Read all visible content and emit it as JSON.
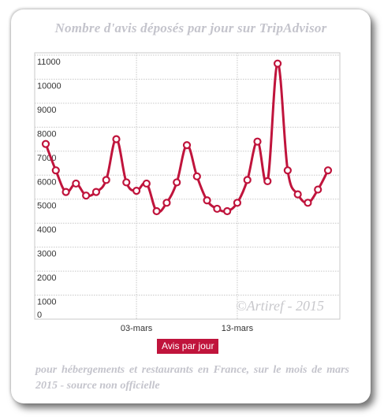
{
  "title": "Nombre d'avis déposés par jour sur TripAdvisor",
  "watermark": "©Artiref - 2015",
  "footnote": "pour hébergements et restaurants en France, sur le mois de mars 2015 - source non officielle",
  "chart_data": {
    "type": "line",
    "title": "Nombre d'avis déposés par jour sur TripAdvisor",
    "xlabel": "",
    "ylabel": "",
    "x_tick_labels": [
      {
        "label": "03-mars",
        "index": 9
      },
      {
        "label": "13-mars",
        "index": 19
      }
    ],
    "y_ticks": [
      0,
      1000,
      2000,
      3000,
      4000,
      5000,
      6000,
      7000,
      8000,
      9000,
      10000,
      11000
    ],
    "ylim": [
      0,
      11100
    ],
    "grid": true,
    "legend_position": "bottom-center",
    "series": [
      {
        "name": "Avis par jour",
        "color": "#c0143c",
        "values": [
          7300,
          6200,
          5300,
          5650,
          5150,
          5300,
          5800,
          7500,
          5700,
          5350,
          5650,
          4500,
          4850,
          5700,
          7250,
          5950,
          4950,
          4600,
          4500,
          4850,
          5800,
          7400,
          5750,
          10650,
          6200,
          5200,
          4850,
          5400,
          6200
        ]
      }
    ]
  }
}
